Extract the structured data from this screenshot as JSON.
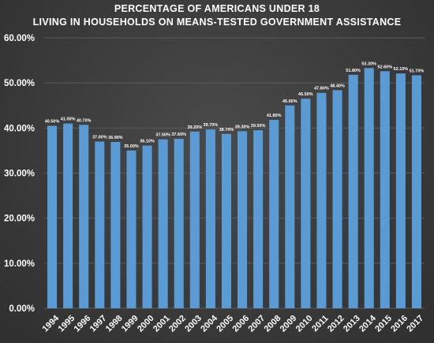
{
  "chart_data": {
    "type": "bar",
    "title_line1": "PERCENTAGE OF AMERICANS UNDER 18",
    "title_line2": "LIVING IN HOUSEHOLDS ON MEANS-TESTED GOVERNMENT ASSISTANCE",
    "xlabel": "",
    "ylabel": "",
    "ylim": [
      0,
      60
    ],
    "y_ticks": [
      {
        "value": 0,
        "label": "0.00%"
      },
      {
        "value": 10,
        "label": "10.00%"
      },
      {
        "value": 20,
        "label": "20.00%"
      },
      {
        "value": 30,
        "label": "30.00%"
      },
      {
        "value": 40,
        "label": "40.00%"
      },
      {
        "value": 50,
        "label": "50.00%"
      },
      {
        "value": 60,
        "label": "60.00%"
      }
    ],
    "grid": true,
    "legend": "none",
    "colors": {
      "bar": "#5b9bd5",
      "text": "#ffffff",
      "grid": "#5a5a5a",
      "background": "#3d3d3d"
    },
    "categories": [
      "1994",
      "1995",
      "1996",
      "1997",
      "1998",
      "1999",
      "2000",
      "2001",
      "2002",
      "2003",
      "2004",
      "2005",
      "2006",
      "2007",
      "2008",
      "2009",
      "2010",
      "2011",
      "2012",
      "2013",
      "2014",
      "2015",
      "2016",
      "2017"
    ],
    "values": [
      40.5,
      41.0,
      40.7,
      37.0,
      36.9,
      35.0,
      36.1,
      37.5,
      37.6,
      39.2,
      39.7,
      38.7,
      39.3,
      39.5,
      41.8,
      45.0,
      46.5,
      47.8,
      48.4,
      51.8,
      53.3,
      52.6,
      52.1,
      51.7
    ],
    "data_labels": [
      "40.50%",
      "41.00%",
      "40.70%",
      "37.00%",
      "36.90%",
      "35.00%",
      "36.10%",
      "37.50%",
      "37.60%",
      "39.20%",
      "39.70%",
      "38.70%",
      "39.30%",
      "39.50%",
      "41.80%",
      "45.00%",
      "46.50%",
      "47.80%",
      "48.40%",
      "51.80%",
      "53.30%",
      "52.60%",
      "52.10%",
      "51.70%"
    ]
  }
}
